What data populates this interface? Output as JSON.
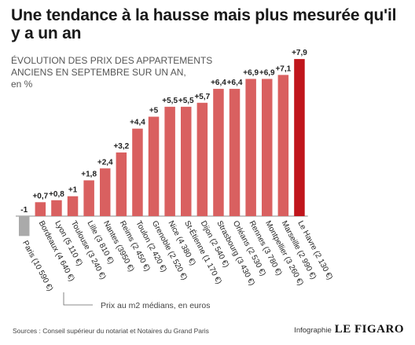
{
  "title": "Une tendance à la hausse mais plus mesurée qu'il y a un an",
  "subtitle_lines": [
    "ÉVOLUTION DES PRIX DES APPARTEMENTS",
    "ANCIENS EN SEPTEMBRE SUR UN AN,",
    "en %"
  ],
  "note": "Prix au m2 médians, en euros",
  "source": "Sources : Conseil supérieur du notariat et Notaires du Grand Paris",
  "credit": {
    "label": "Infographie",
    "logo": "LE FIGARO"
  },
  "colors": {
    "bar": "#d96060",
    "highlight": "#c0161c",
    "negative": "#aaaaaa",
    "baseline": "#888888"
  },
  "chart_data": {
    "type": "bar",
    "title": "Une tendance à la hausse mais plus mesurée qu'il y a un an",
    "xlabel": "",
    "ylabel": "",
    "unit": "%",
    "categories": [
      "Paris (10 590 €)",
      "Bordeaux (4 640 €)",
      "Lyon (5 110 €)",
      "Toulouse (3 240 €)",
      "Lille (3 810 €)",
      "Nantes (3950 €)",
      "Reims (2 450 €)",
      "Toulon (2 420 €)",
      "Grenoble (2 520 €)",
      "Nice (4 380 €)",
      "St-Étienne (1 170 €)",
      "Dijon (2 540 €)",
      "Strasbourg (3 430 €)",
      "Orléans (2 530 €)",
      "Rennes (3 780 €)",
      "Montpellier (3 260 €)",
      "Marseille (2 990 €)",
      "Le Havre (2 130 €)"
    ],
    "values": [
      -1,
      0.7,
      0.8,
      1,
      1.8,
      2.4,
      3.2,
      4.4,
      5,
      5.5,
      5.5,
      5.7,
      6.4,
      6.4,
      6.9,
      6.9,
      7.1,
      7.9
    ],
    "labels": [
      "-1",
      "+0,7",
      "+0,8",
      "+1",
      "+1,8",
      "+2,4",
      "+3,2",
      "+4,4",
      "+5",
      "+5,5",
      "+5,5",
      "+5,7",
      "+6,4",
      "+6,4",
      "+6,9",
      "+6,9",
      "+7,1",
      "+7,9"
    ],
    "highlight": "Le Havre (2 130 €)",
    "ylim": [
      -1,
      7.9
    ],
    "grid": false,
    "legend": "none"
  }
}
